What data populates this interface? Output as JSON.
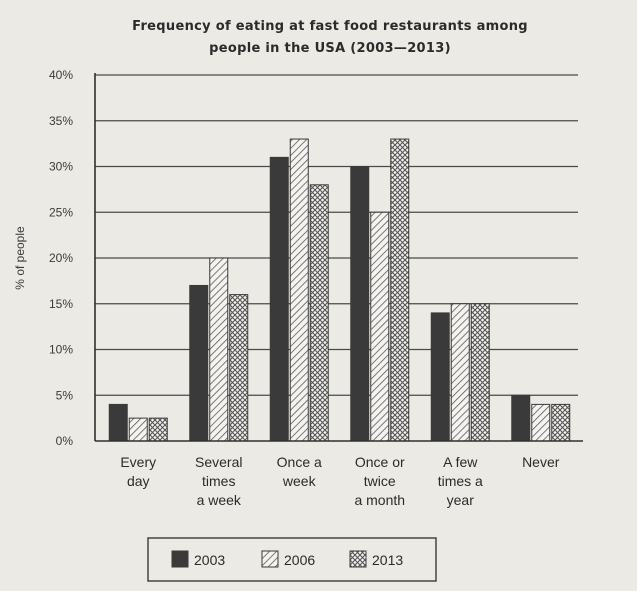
{
  "chart_data": {
    "type": "bar",
    "title_lines": [
      "Frequency of eating at fast food restaurants among",
      "people in the USA (2003—2013)"
    ],
    "ylabel": "% of people",
    "ylim": [
      0,
      40
    ],
    "yticks": [
      {
        "value": 0,
        "label": "0%"
      },
      {
        "value": 5,
        "label": "5%"
      },
      {
        "value": 10,
        "label": "10%"
      },
      {
        "value": 15,
        "label": "15%"
      },
      {
        "value": 20,
        "label": "20%"
      },
      {
        "value": 25,
        "label": "25%"
      },
      {
        "value": 30,
        "label": "30%"
      },
      {
        "value": 35,
        "label": "35%"
      },
      {
        "value": 40,
        "label": "40%"
      }
    ],
    "grid": true,
    "categories": [
      [
        "Every",
        "day"
      ],
      [
        "Several",
        "times",
        "a week"
      ],
      [
        "Once a",
        "week"
      ],
      [
        "Once or",
        "twice",
        "a month"
      ],
      [
        "A few",
        "times a",
        "year"
      ],
      [
        "Never"
      ]
    ],
    "series": [
      {
        "name": "2003",
        "pattern": "solid",
        "color": "#3a3a3a",
        "values": [
          4,
          17,
          31,
          30,
          14,
          5
        ]
      },
      {
        "name": "2006",
        "pattern": "diagonal",
        "color": "#6a6a6a",
        "values": [
          2.5,
          20,
          33,
          25,
          15,
          4
        ]
      },
      {
        "name": "2013",
        "pattern": "crosshatch",
        "color": "#5a5a5a",
        "values": [
          2.5,
          16,
          28,
          33,
          15,
          4
        ]
      }
    ],
    "legend_position": "bottom"
  }
}
